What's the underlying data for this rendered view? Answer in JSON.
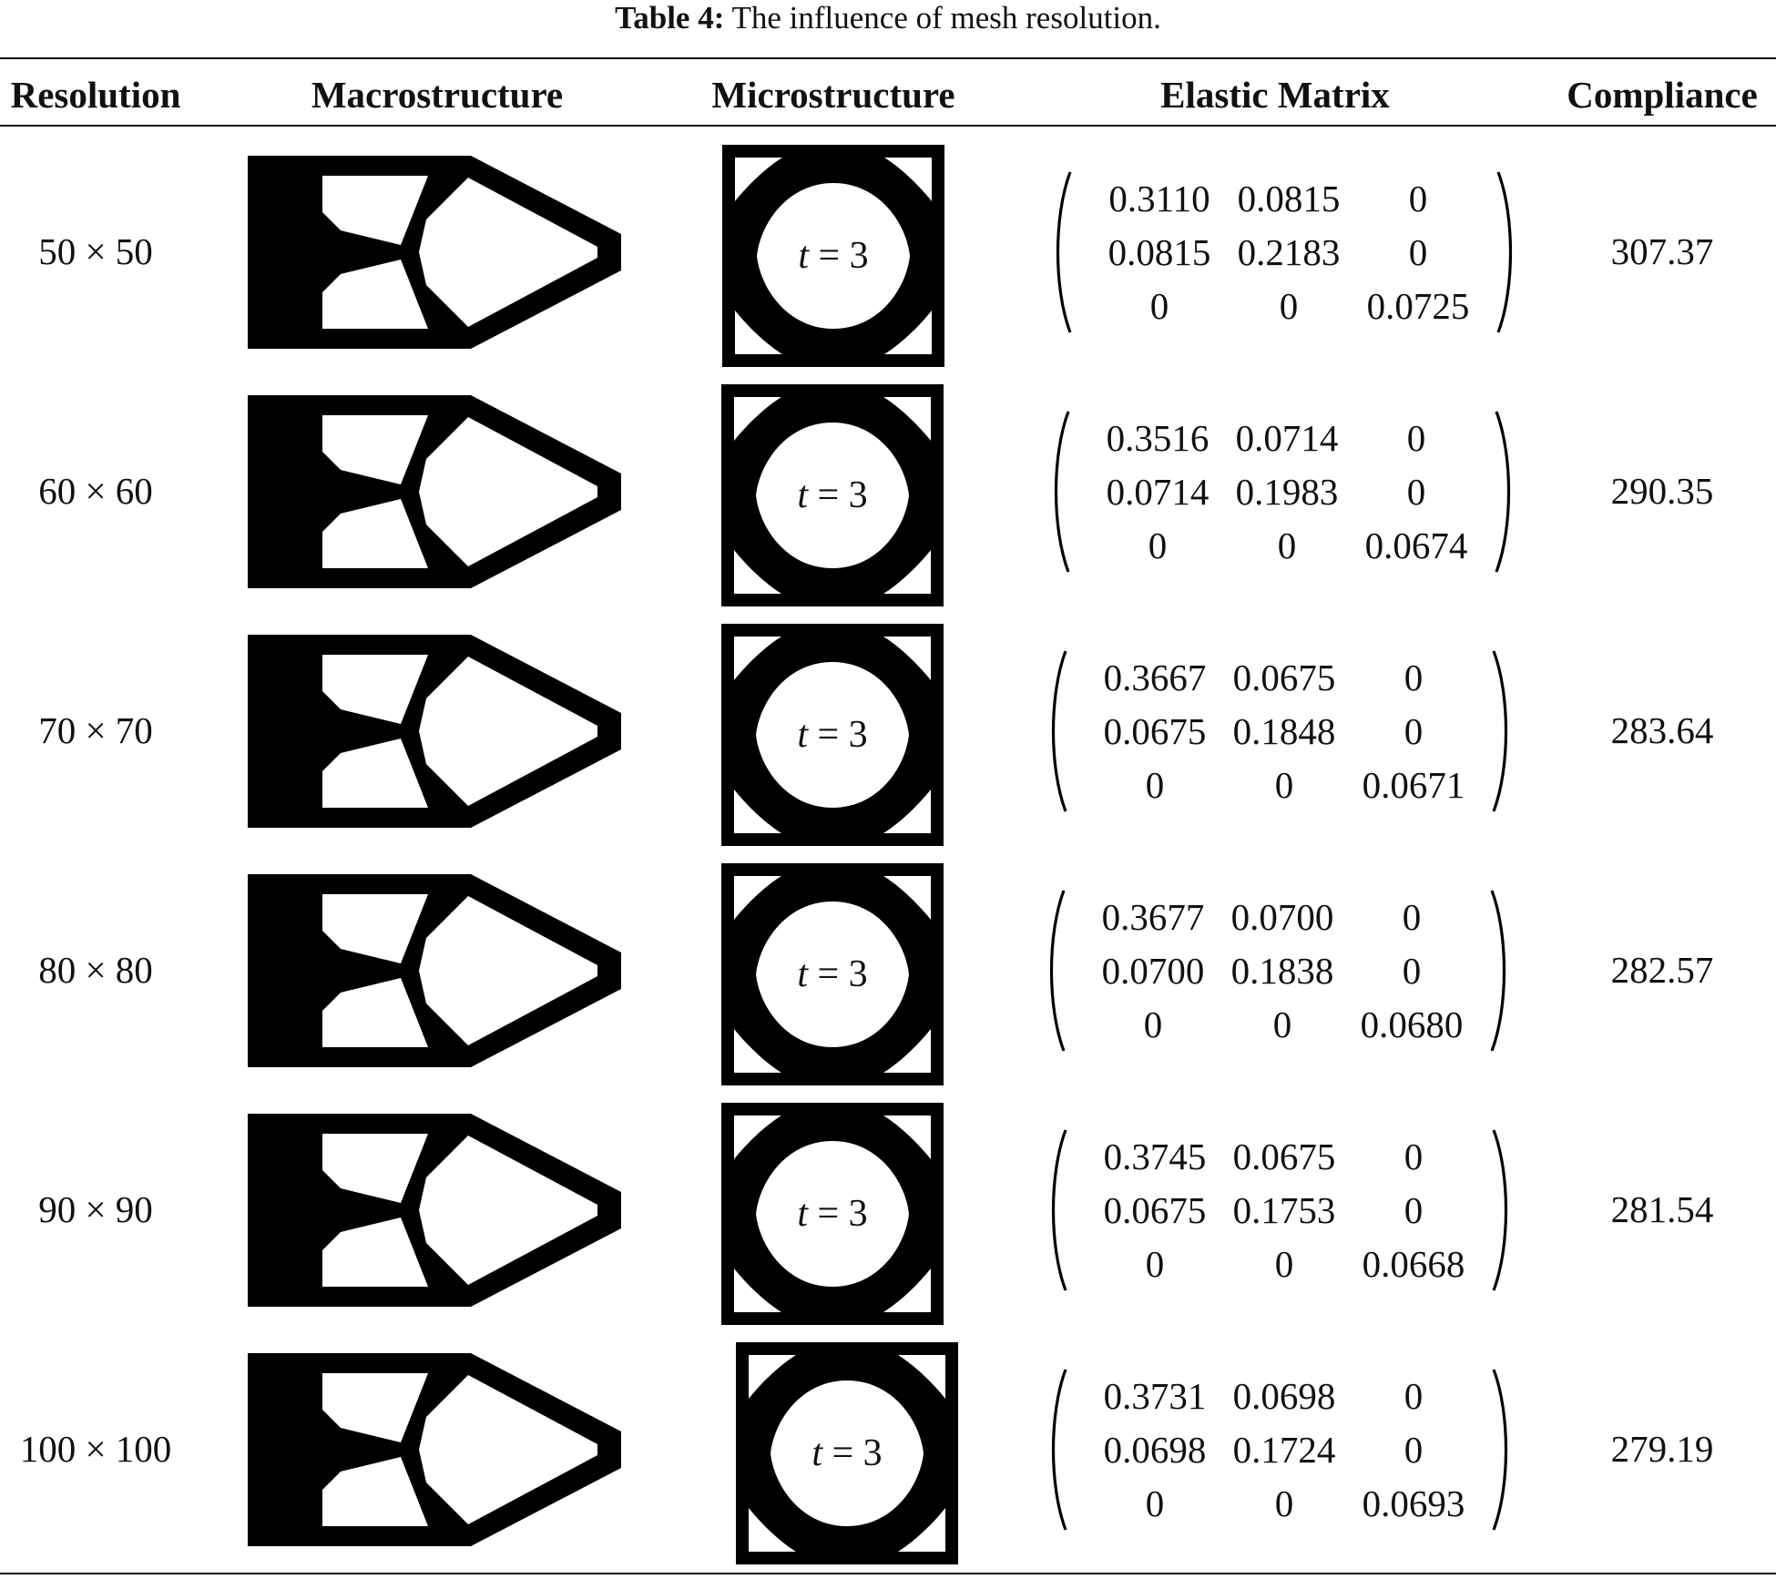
{
  "caption": {
    "label": "Table 4:",
    "text": "The influence of mesh resolution."
  },
  "headers": {
    "resolution": "Resolution",
    "macrostructure": "Macrostructure",
    "microstructure": "Microstructure",
    "elastic_matrix": "Elastic Matrix",
    "compliance": "Compliance"
  },
  "rows": [
    {
      "resolution": "50 × 50",
      "t_var": "t",
      "t_eq": " = 3",
      "matrix": [
        [
          "0.3110",
          "0.0815",
          "0"
        ],
        [
          "0.0815",
          "0.2183",
          "0"
        ],
        [
          "0",
          "0",
          "0.0725"
        ]
      ],
      "compliance": "307.37"
    },
    {
      "resolution": "60 × 60",
      "t_var": "t",
      "t_eq": " = 3",
      "matrix": [
        [
          "0.3516",
          "0.0714",
          "0"
        ],
        [
          "0.0714",
          "0.1983",
          "0"
        ],
        [
          "0",
          "0",
          "0.0674"
        ]
      ],
      "compliance": "290.35"
    },
    {
      "resolution": "70 × 70",
      "t_var": "t",
      "t_eq": " = 3",
      "matrix": [
        [
          "0.3667",
          "0.0675",
          "0"
        ],
        [
          "0.0675",
          "0.1848",
          "0"
        ],
        [
          "0",
          "0",
          "0.0671"
        ]
      ],
      "compliance": "283.64"
    },
    {
      "resolution": "80 × 80",
      "t_var": "t",
      "t_eq": " = 3",
      "matrix": [
        [
          "0.3677",
          "0.0700",
          "0"
        ],
        [
          "0.0700",
          "0.1838",
          "0"
        ],
        [
          "0",
          "0",
          "0.0680"
        ]
      ],
      "compliance": "282.57"
    },
    {
      "resolution": "90 × 90",
      "t_var": "t",
      "t_eq": " = 3",
      "matrix": [
        [
          "0.3745",
          "0.0675",
          "0"
        ],
        [
          "0.0675",
          "0.1753",
          "0"
        ],
        [
          "0",
          "0",
          "0.0668"
        ]
      ],
      "compliance": "281.54"
    },
    {
      "resolution": "100 × 100",
      "t_var": "t",
      "t_eq": " = 3",
      "matrix": [
        [
          "0.3731",
          "0.0698",
          "0"
        ],
        [
          "0.0698",
          "0.1724",
          "0"
        ],
        [
          "0",
          "0",
          "0.0693"
        ]
      ],
      "compliance": "279.19"
    }
  ]
}
